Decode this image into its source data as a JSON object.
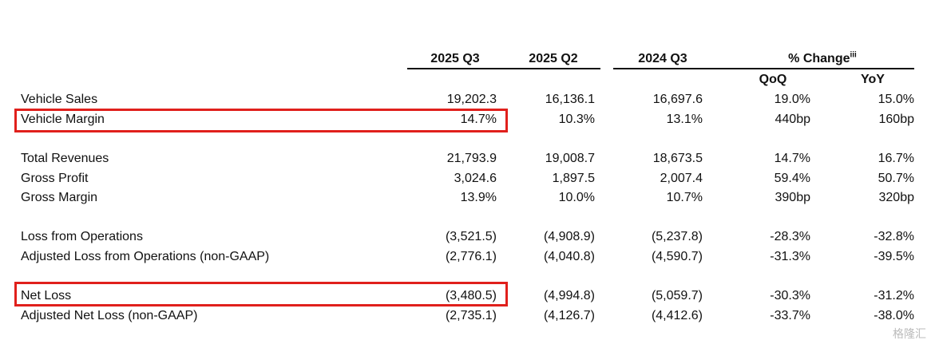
{
  "table": {
    "columns": [
      "2025 Q3",
      "2025 Q2",
      "2024 Q3"
    ],
    "change_header": {
      "text": "% Change",
      "superscript": "iii"
    },
    "subheaders": [
      "QoQ",
      "YoY"
    ],
    "groups": [
      [
        {
          "label": "Vehicle Sales",
          "values": [
            "19,202.3",
            "16,136.1",
            "16,697.6",
            "19.0%",
            "15.0%"
          ]
        },
        {
          "label": "Vehicle Margin",
          "values": [
            "14.7%",
            "10.3%",
            "13.1%",
            "440bp",
            "160bp"
          ]
        }
      ],
      [
        {
          "label": "Total Revenues",
          "values": [
            "21,793.9",
            "19,008.7",
            "18,673.5",
            "14.7%",
            "16.7%"
          ]
        },
        {
          "label": "Gross Profit",
          "values": [
            "3,024.6",
            "1,897.5",
            "2,007.4",
            "59.4%",
            "50.7%"
          ]
        },
        {
          "label": "Gross Margin",
          "values": [
            "13.9%",
            "10.0%",
            "10.7%",
            "390bp",
            "320bp"
          ]
        }
      ],
      [
        {
          "label": "Loss from Operations",
          "values": [
            "(3,521.5)",
            "(4,908.9)",
            "(5,237.8)",
            "-28.3%",
            "-32.8%"
          ]
        },
        {
          "label": "Adjusted Loss from Operations (non-GAAP)",
          "values": [
            "(2,776.1)",
            "(4,040.8)",
            "(4,590.7)",
            "-31.3%",
            "-39.5%"
          ]
        }
      ],
      [
        {
          "label": "Net Loss",
          "values": [
            "(3,480.5)",
            "(4,994.8)",
            "(5,059.7)",
            "-30.3%",
            "-31.2%"
          ]
        },
        {
          "label": "Adjusted Net Loss (non-GAAP)",
          "values": [
            "(2,735.1)",
            "(4,126.7)",
            "(4,412.6)",
            "-33.7%",
            "-38.0%"
          ]
        }
      ]
    ],
    "watermark": "格隆汇"
  }
}
